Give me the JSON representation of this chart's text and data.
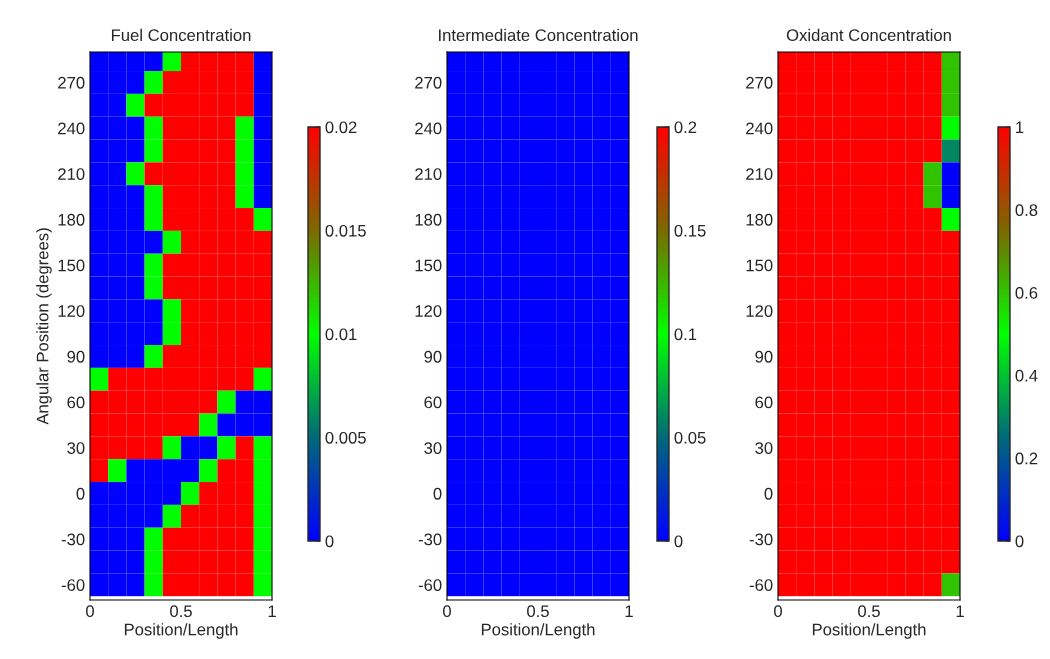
{
  "chart_data": [
    {
      "type": "heatmap",
      "title": "Fuel Concentration",
      "xlabel": "Position/Length",
      "ylabel": "Angular Position (degrees)",
      "x": [
        0.05,
        0.15,
        0.25,
        0.35,
        0.45,
        0.55,
        0.65,
        0.75,
        0.85,
        0.95
      ],
      "y": [
        285,
        270,
        255,
        240,
        225,
        210,
        195,
        180,
        165,
        150,
        135,
        120,
        105,
        90,
        75,
        60,
        45,
        30,
        15,
        0,
        -15,
        -30,
        -45,
        -60
      ],
      "xlim": [
        0,
        1
      ],
      "xticks": [
        0,
        0.5,
        1
      ],
      "ylim": [
        -70,
        290
      ],
      "yticks": [
        -60,
        -30,
        0,
        30,
        60,
        90,
        120,
        150,
        180,
        210,
        240,
        270
      ],
      "clim": [
        0,
        0.02
      ],
      "cticks": [
        0,
        0.005,
        0.01,
        0.015,
        0.02
      ],
      "cells": [
        [
          0,
          0,
          0,
          0,
          0.01,
          0.02,
          0.02,
          0.02,
          0.02,
          0
        ],
        [
          0,
          0,
          0,
          0.01,
          0.02,
          0.02,
          0.02,
          0.02,
          0.02,
          0
        ],
        [
          0,
          0,
          0.01,
          0.02,
          0.02,
          0.02,
          0.02,
          0.02,
          0.02,
          0
        ],
        [
          0,
          0,
          0,
          0.01,
          0.02,
          0.02,
          0.02,
          0.02,
          0.01,
          0
        ],
        [
          0,
          0,
          0,
          0.01,
          0.02,
          0.02,
          0.02,
          0.02,
          0.01,
          0
        ],
        [
          0,
          0,
          0.01,
          0.02,
          0.02,
          0.02,
          0.02,
          0.02,
          0.01,
          0
        ],
        [
          0,
          0,
          0,
          0.01,
          0.02,
          0.02,
          0.02,
          0.02,
          0.01,
          0
        ],
        [
          0,
          0,
          0,
          0.01,
          0.02,
          0.02,
          0.02,
          0.02,
          0.02,
          0.01
        ],
        [
          0,
          0,
          0,
          0,
          0.01,
          0.02,
          0.02,
          0.02,
          0.02,
          0.02
        ],
        [
          0,
          0,
          0,
          0.01,
          0.02,
          0.02,
          0.02,
          0.02,
          0.02,
          0.02
        ],
        [
          0,
          0,
          0,
          0.01,
          0.02,
          0.02,
          0.02,
          0.02,
          0.02,
          0.02
        ],
        [
          0,
          0,
          0,
          0,
          0.01,
          0.02,
          0.02,
          0.02,
          0.02,
          0.02
        ],
        [
          0,
          0,
          0,
          0,
          0.01,
          0.02,
          0.02,
          0.02,
          0.02,
          0.02
        ],
        [
          0,
          0,
          0,
          0.01,
          0.02,
          0.02,
          0.02,
          0.02,
          0.02,
          0.02
        ],
        [
          0.01,
          0.02,
          0.02,
          0.02,
          0.02,
          0.02,
          0.02,
          0.02,
          0.02,
          0.01
        ],
        [
          0.02,
          0.02,
          0.02,
          0.02,
          0.02,
          0.02,
          0.02,
          0.01,
          0,
          0
        ],
        [
          0.02,
          0.02,
          0.02,
          0.02,
          0.02,
          0.02,
          0.01,
          0,
          0,
          0
        ],
        [
          0.02,
          0.02,
          0.02,
          0.02,
          0.01,
          0,
          0,
          0.01,
          0.02,
          0.01
        ],
        [
          0.02,
          0.01,
          0,
          0,
          0,
          0,
          0.01,
          0.02,
          0.02,
          0.01
        ],
        [
          0,
          0,
          0,
          0,
          0,
          0.01,
          0.02,
          0.02,
          0.02,
          0.01
        ],
        [
          0,
          0,
          0,
          0,
          0.01,
          0.02,
          0.02,
          0.02,
          0.02,
          0.01
        ],
        [
          0,
          0,
          0,
          0.01,
          0.02,
          0.02,
          0.02,
          0.02,
          0.02,
          0.01
        ],
        [
          0,
          0,
          0,
          0.01,
          0.02,
          0.02,
          0.02,
          0.02,
          0.02,
          0.01
        ],
        [
          0,
          0,
          0,
          0.01,
          0.02,
          0.02,
          0.02,
          0.02,
          0.02,
          0.01
        ]
      ]
    },
    {
      "type": "heatmap",
      "title": "Intermediate Concentration",
      "xlabel": "Position/Length",
      "x": [
        0.05,
        0.15,
        0.25,
        0.35,
        0.45,
        0.55,
        0.65,
        0.75,
        0.85,
        0.95
      ],
      "y": [
        285,
        270,
        255,
        240,
        225,
        210,
        195,
        180,
        165,
        150,
        135,
        120,
        105,
        90,
        75,
        60,
        45,
        30,
        15,
        0,
        -15,
        -30,
        -45,
        -60
      ],
      "xlim": [
        0,
        1
      ],
      "xticks": [
        0,
        0.5,
        1
      ],
      "ylim": [
        -70,
        290
      ],
      "yticks": [
        -60,
        -30,
        0,
        30,
        60,
        90,
        120,
        150,
        180,
        210,
        240,
        270
      ],
      "clim": [
        0,
        0.2
      ],
      "cticks": [
        0,
        0.05,
        0.1,
        0.15,
        0.2
      ],
      "cells": [
        [
          0,
          0,
          0,
          0,
          0,
          0,
          0,
          0,
          0,
          0
        ],
        [
          0,
          0,
          0,
          0,
          0,
          0,
          0,
          0,
          0,
          0
        ],
        [
          0,
          0,
          0,
          0,
          0,
          0,
          0,
          0,
          0,
          0
        ],
        [
          0,
          0,
          0,
          0,
          0,
          0,
          0,
          0,
          0,
          0
        ],
        [
          0,
          0,
          0,
          0,
          0,
          0,
          0,
          0,
          0,
          0
        ],
        [
          0,
          0,
          0,
          0,
          0,
          0,
          0,
          0,
          0,
          0
        ],
        [
          0,
          0,
          0,
          0,
          0,
          0,
          0,
          0,
          0,
          0
        ],
        [
          0,
          0,
          0,
          0,
          0,
          0,
          0,
          0,
          0,
          0
        ],
        [
          0,
          0,
          0,
          0,
          0,
          0,
          0,
          0,
          0,
          0
        ],
        [
          0,
          0,
          0,
          0,
          0,
          0,
          0,
          0,
          0,
          0
        ],
        [
          0,
          0,
          0,
          0,
          0,
          0,
          0,
          0,
          0,
          0
        ],
        [
          0,
          0,
          0,
          0,
          0,
          0,
          0,
          0,
          0,
          0
        ],
        [
          0,
          0,
          0,
          0,
          0,
          0,
          0,
          0,
          0,
          0
        ],
        [
          0,
          0,
          0,
          0,
          0,
          0,
          0,
          0,
          0,
          0
        ],
        [
          0,
          0,
          0,
          0,
          0,
          0,
          0,
          0,
          0,
          0
        ],
        [
          0,
          0,
          0,
          0,
          0,
          0,
          0,
          0,
          0,
          0
        ],
        [
          0,
          0,
          0,
          0,
          0,
          0,
          0,
          0,
          0,
          0
        ],
        [
          0,
          0,
          0,
          0,
          0,
          0,
          0,
          0,
          0,
          0
        ],
        [
          0,
          0,
          0,
          0,
          0,
          0,
          0,
          0,
          0,
          0
        ],
        [
          0,
          0,
          0,
          0,
          0,
          0,
          0,
          0,
          0,
          0
        ],
        [
          0,
          0,
          0,
          0,
          0,
          0,
          0,
          0,
          0,
          0
        ],
        [
          0,
          0,
          0,
          0,
          0,
          0,
          0,
          0,
          0,
          0
        ],
        [
          0,
          0,
          0,
          0,
          0,
          0,
          0,
          0,
          0,
          0
        ],
        [
          0,
          0,
          0,
          0,
          0,
          0,
          0,
          0,
          0,
          0
        ]
      ]
    },
    {
      "type": "heatmap",
      "title": "Oxidant Concentration",
      "xlabel": "Position/Length",
      "x": [
        0.05,
        0.15,
        0.25,
        0.35,
        0.45,
        0.55,
        0.65,
        0.75,
        0.85,
        0.95
      ],
      "y": [
        285,
        270,
        255,
        240,
        225,
        210,
        195,
        180,
        165,
        150,
        135,
        120,
        105,
        90,
        75,
        60,
        45,
        30,
        15,
        0,
        -15,
        -30,
        -45,
        -60
      ],
      "xlim": [
        0,
        1
      ],
      "xticks": [
        0,
        0.5,
        1
      ],
      "ylim": [
        -70,
        290
      ],
      "yticks": [
        -60,
        -30,
        0,
        30,
        60,
        90,
        120,
        150,
        180,
        210,
        240,
        270
      ],
      "clim": [
        0,
        1
      ],
      "cticks": [
        0,
        0.2,
        0.4,
        0.6,
        0.8,
        1
      ],
      "cells": [
        [
          1,
          1,
          1,
          1,
          1,
          1,
          1,
          1,
          1,
          0.6
        ],
        [
          1,
          1,
          1,
          1,
          1,
          1,
          1,
          1,
          1,
          0.6
        ],
        [
          1,
          1,
          1,
          1,
          1,
          1,
          1,
          1,
          1,
          0.6
        ],
        [
          1,
          1,
          1,
          1,
          1,
          1,
          1,
          1,
          1,
          0.5
        ],
        [
          1,
          1,
          1,
          1,
          1,
          1,
          1,
          1,
          1,
          0.3
        ],
        [
          1,
          1,
          1,
          1,
          1,
          1,
          1,
          1,
          0.6,
          0
        ],
        [
          1,
          1,
          1,
          1,
          1,
          1,
          1,
          1,
          0.6,
          0
        ],
        [
          1,
          1,
          1,
          1,
          1,
          1,
          1,
          1,
          1,
          0.5
        ],
        [
          1,
          1,
          1,
          1,
          1,
          1,
          1,
          1,
          1,
          1
        ],
        [
          1,
          1,
          1,
          1,
          1,
          1,
          1,
          1,
          1,
          1
        ],
        [
          1,
          1,
          1,
          1,
          1,
          1,
          1,
          1,
          1,
          1
        ],
        [
          1,
          1,
          1,
          1,
          1,
          1,
          1,
          1,
          1,
          1
        ],
        [
          1,
          1,
          1,
          1,
          1,
          1,
          1,
          1,
          1,
          1
        ],
        [
          1,
          1,
          1,
          1,
          1,
          1,
          1,
          1,
          1,
          1
        ],
        [
          1,
          1,
          1,
          1,
          1,
          1,
          1,
          1,
          1,
          1
        ],
        [
          1,
          1,
          1,
          1,
          1,
          1,
          1,
          1,
          1,
          1
        ],
        [
          1,
          1,
          1,
          1,
          1,
          1,
          1,
          1,
          1,
          1
        ],
        [
          1,
          1,
          1,
          1,
          1,
          1,
          1,
          1,
          1,
          1
        ],
        [
          1,
          1,
          1,
          1,
          1,
          1,
          1,
          1,
          1,
          1
        ],
        [
          1,
          1,
          1,
          1,
          1,
          1,
          1,
          1,
          1,
          1
        ],
        [
          1,
          1,
          1,
          1,
          1,
          1,
          1,
          1,
          1,
          1
        ],
        [
          1,
          1,
          1,
          1,
          1,
          1,
          1,
          1,
          1,
          1
        ],
        [
          1,
          1,
          1,
          1,
          1,
          1,
          1,
          1,
          1,
          1
        ],
        [
          1,
          1,
          1,
          1,
          1,
          1,
          1,
          1,
          1,
          0.6
        ]
      ]
    }
  ]
}
